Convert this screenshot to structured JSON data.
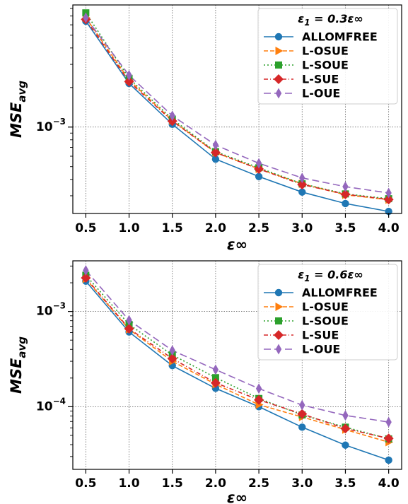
{
  "chart_data": [
    {
      "type": "line",
      "scale_y": "log",
      "grid": true,
      "legend_placement": "upper-right",
      "legend_title": "ε1 = 0.3ε∞",
      "xlabel": "ε∞",
      "ylabel": "MSEavg",
      "x": [
        0.5,
        1.0,
        1.5,
        2.0,
        2.5,
        3.0,
        3.5,
        4.0
      ],
      "xlim": [
        0.35,
        4.15
      ],
      "ylim": [
        0.00022,
        0.0085
      ],
      "x_tick_labels": [
        "0.5",
        "1.0",
        "1.5",
        "2.0",
        "2.5",
        "3.0",
        "3.5",
        "4.0"
      ],
      "y_tick_labels": [
        {
          "value": 0.001,
          "label": "10−3"
        }
      ],
      "series": [
        {
          "name": "ALLOMFREE",
          "color": "#1f77b4",
          "marker": "circle",
          "dash": "",
          "values": [
            0.0064,
            0.00215,
            0.00105,
            0.00057,
            0.00042,
            0.00032,
            0.000262,
            0.000228
          ]
        },
        {
          "name": "L-OSUE",
          "color": "#ff7f0e",
          "marker": "triangle-right",
          "dash": "6,3",
          "values": [
            0.0068,
            0.00228,
            0.00112,
            0.00064,
            0.00048,
            0.00037,
            0.000305,
            0.00028
          ]
        },
        {
          "name": "L-SOUE",
          "color": "#2ca02c",
          "marker": "square",
          "dash": "2,3",
          "values": [
            0.0074,
            0.00235,
            0.00115,
            0.00065,
            0.00049,
            0.00037,
            0.00031,
            0.000285
          ]
        },
        {
          "name": "L-SUE",
          "color": "#d62728",
          "marker": "diamond",
          "dash": "6,3,1,3",
          "values": [
            0.0066,
            0.00222,
            0.00111,
            0.00064,
            0.00048,
            0.000365,
            0.000308,
            0.000281
          ]
        },
        {
          "name": "L-OUE",
          "color": "#9467bd",
          "marker": "thin-diamond",
          "dash": "10,5",
          "values": [
            0.0068,
            0.00248,
            0.00122,
            0.00073,
            0.00053,
            0.00041,
            0.000352,
            0.000315
          ]
        }
      ]
    },
    {
      "type": "line",
      "scale_y": "log",
      "grid": true,
      "legend_placement": "upper-right",
      "legend_title": "ε1 = 0.6ε∞",
      "xlabel": "ε∞",
      "ylabel": "MSEavg",
      "x": [
        0.5,
        1.0,
        1.5,
        2.0,
        2.5,
        3.0,
        3.5,
        4.0
      ],
      "xlim": [
        0.35,
        4.15
      ],
      "ylim": [
        2.2e-05,
        0.0034
      ],
      "x_tick_labels": [
        "0.5",
        "1.0",
        "1.5",
        "2.0",
        "2.5",
        "3.0",
        "3.5",
        "4.0"
      ],
      "y_tick_labels": [
        {
          "value": 0.001,
          "label": "10−3"
        },
        {
          "value": 0.0001,
          "label": "10−4"
        }
      ],
      "series": [
        {
          "name": "ALLOMFREE",
          "color": "#1f77b4",
          "marker": "circle",
          "dash": "",
          "values": [
            0.00208,
            0.00061,
            0.00027,
            0.000156,
            0.0001,
            6.1e-05,
            3.95e-05,
            2.75e-05
          ]
        },
        {
          "name": "L-OSUE",
          "color": "#ff7f0e",
          "marker": "triangle-right",
          "dash": "6,3",
          "values": [
            0.0022,
            0.00065,
            0.0003,
            0.000172,
            0.000105,
            7.8e-05,
            5.75e-05,
            4.25e-05
          ]
        },
        {
          "name": "L-SOUE",
          "color": "#2ca02c",
          "marker": "square",
          "dash": "2,3",
          "values": [
            0.0024,
            0.00073,
            0.00035,
            0.000202,
            0.000122,
            8.2e-05,
            6.1e-05,
            4.6e-05
          ]
        },
        {
          "name": "L-SUE",
          "color": "#d62728",
          "marker": "diamond",
          "dash": "6,3,1,3",
          "values": [
            0.00225,
            0.00066,
            0.00032,
            0.000178,
            0.000118,
            8.4e-05,
            5.9e-05,
            4.65e-05
          ]
        },
        {
          "name": "L-OUE",
          "color": "#9467bd",
          "marker": "thin-diamond",
          "dash": "10,5",
          "values": [
            0.0027,
            0.00081,
            0.00039,
            0.000245,
            0.000155,
            0.000104,
            8.1e-05,
            6.9e-05
          ]
        }
      ]
    }
  ]
}
